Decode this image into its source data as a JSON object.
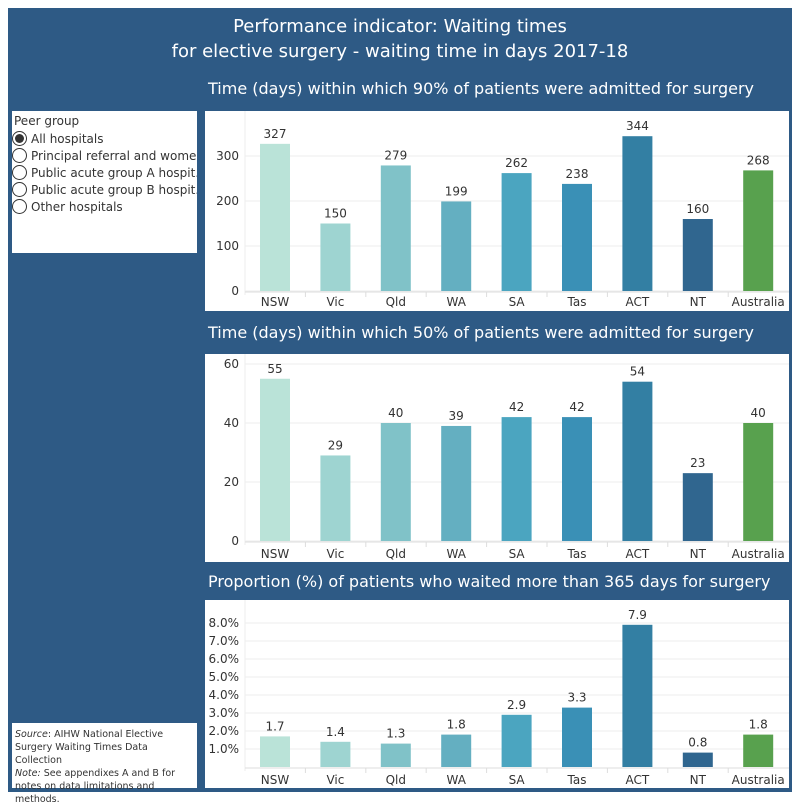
{
  "title_lines": [
    "Performance indicator: Waiting times",
    "for elective surgery - waiting time in days 2017-18"
  ],
  "filter": {
    "label": "Peer group",
    "options": [
      "All hospitals",
      "Principal referral and wome..",
      "Public acute group A hospit..",
      "Public acute group B hospit..",
      "Other hospitals"
    ],
    "selected": 0
  },
  "note": {
    "source_label": "Source",
    "source_text": ": AIHW National Elective Surgery Waiting Times Data Collection",
    "note_label": "Note:",
    "note_text": " See appendixes A and B for notes on data limitations and methods."
  },
  "colors": [
    "#BAE3D8",
    "#9ED4D1",
    "#80C2C8",
    "#64AFC1",
    "#4BA5C0",
    "#3A90B6",
    "#337FA3",
    "#30668F",
    "#58A14E"
  ],
  "chart_data": [
    {
      "type": "bar",
      "title": "Time (days) within which 90% of patients were admitted for surgery",
      "categories": [
        "NSW",
        "Vic",
        "Qld",
        "WA",
        "SA",
        "Tas",
        "ACT",
        "NT",
        "Australia"
      ],
      "values": [
        327,
        150,
        279,
        199,
        262,
        238,
        344,
        160,
        268
      ],
      "labels": [
        "327",
        "150",
        "279",
        "199",
        "262",
        "238",
        "344",
        "160",
        "268"
      ],
      "yticks": [
        "0",
        "100",
        "200",
        "300"
      ],
      "ytick_values": [
        0,
        100,
        200,
        300
      ],
      "ylim": [
        0,
        370
      ],
      "grid": true
    },
    {
      "type": "bar",
      "title": "Time (days) within which 50% of patients were admitted for surgery",
      "categories": [
        "NSW",
        "Vic",
        "Qld",
        "WA",
        "SA",
        "Tas",
        "ACT",
        "NT",
        "Australia"
      ],
      "values": [
        55,
        29,
        40,
        39,
        42,
        42,
        54,
        23,
        40
      ],
      "labels": [
        "55",
        "29",
        "40",
        "39",
        "42",
        "42",
        "54",
        "23",
        "40"
      ],
      "yticks": [
        "0",
        "20",
        "40",
        "60"
      ],
      "ytick_values": [
        0,
        20,
        40,
        60
      ],
      "ylim": [
        0,
        60
      ],
      "grid": true
    },
    {
      "type": "bar",
      "title": "Proportion (%) of patients who waited more than 365 days for surgery",
      "categories": [
        "NSW",
        "Vic",
        "Qld",
        "WA",
        "SA",
        "Tas",
        "ACT",
        "NT",
        "Australia"
      ],
      "values": [
        1.7,
        1.4,
        1.3,
        1.8,
        2.9,
        3.3,
        7.9,
        0.8,
        1.8
      ],
      "labels": [
        "1.7",
        "1.4",
        "1.3",
        "1.8",
        "2.9",
        "3.3",
        "7.9",
        "0.8",
        "1.8"
      ],
      "yticks": [
        "1.0%",
        "2.0%",
        "3.0%",
        "4.0%",
        "5.0%",
        "6.0%",
        "7.0%",
        "8.0%"
      ],
      "ytick_values": [
        1,
        2,
        3,
        4,
        5,
        6,
        7,
        8
      ],
      "ylim": [
        0,
        9
      ],
      "grid": true
    }
  ]
}
